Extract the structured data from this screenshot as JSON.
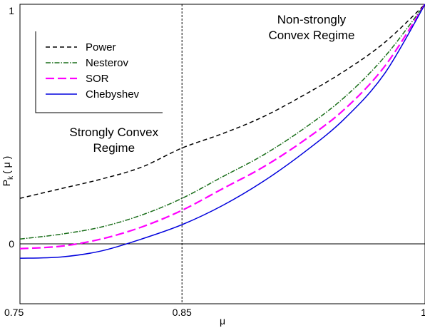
{
  "chart_data": {
    "type": "line",
    "xlabel": "μ",
    "ylabel": "P_k ( μ )",
    "ylabel_main": "P",
    "ylabel_sub": "k",
    "ylabel_arg": "( μ )",
    "xlim": [
      0.75,
      1.0
    ],
    "ylim": [
      -0.25,
      1.0
    ],
    "x_ticks": [
      {
        "value": 0.75,
        "label": "0.75"
      },
      {
        "value": 0.85,
        "label": "0.85"
      },
      {
        "value": 1.0,
        "label": "1"
      }
    ],
    "y_ticks": [
      {
        "value": 0,
        "label": "0"
      },
      {
        "value": 1,
        "label": "1"
      }
    ],
    "reference_lines": {
      "horizontal_y": 0,
      "vertical_x": 0.85
    },
    "annotations": [
      {
        "id": "strong",
        "lines": [
          "Strongly Convex",
          "Regime"
        ],
        "x": 0.808,
        "y": 0.45
      },
      {
        "id": "nonstrong",
        "lines": [
          "Non-strongly",
          "Convex Regime"
        ],
        "x": 0.93,
        "y": 0.92
      }
    ],
    "legend_position": "top-left",
    "grid": false,
    "series": [
      {
        "name": "Power",
        "color": "#000000",
        "dash": "6,4",
        "width": 1.5,
        "x": [
          0.75,
          0.775,
          0.8,
          0.825,
          0.85,
          0.875,
          0.9,
          0.925,
          0.95,
          0.975,
          1.0
        ],
        "y": [
          0.19,
          0.23,
          0.27,
          0.32,
          0.4,
          0.46,
          0.53,
          0.62,
          0.72,
          0.84,
          1.0
        ]
      },
      {
        "name": "Nesterov",
        "color": "#1a6e1a",
        "dash": "7,2,1.5,2",
        "width": 1.5,
        "x": [
          0.75,
          0.775,
          0.8,
          0.825,
          0.85,
          0.875,
          0.9,
          0.925,
          0.95,
          0.975,
          1.0
        ],
        "y": [
          0.02,
          0.04,
          0.07,
          0.12,
          0.19,
          0.28,
          0.37,
          0.48,
          0.61,
          0.78,
          1.0
        ]
      },
      {
        "name": "SOR",
        "color": "#ff00ff",
        "dash": "12,5",
        "width": 2.2,
        "x": [
          0.75,
          0.775,
          0.8,
          0.825,
          0.85,
          0.875,
          0.9,
          0.925,
          0.95,
          0.975,
          1.0
        ],
        "y": [
          -0.02,
          -0.01,
          0.02,
          0.07,
          0.14,
          0.23,
          0.32,
          0.43,
          0.56,
          0.74,
          1.0
        ]
      },
      {
        "name": "Chebyshev",
        "color": "#0000dd",
        "dash": "",
        "width": 1.5,
        "x": [
          0.75,
          0.775,
          0.8,
          0.825,
          0.85,
          0.875,
          0.9,
          0.925,
          0.95,
          0.975,
          1.0
        ],
        "y": [
          -0.06,
          -0.055,
          -0.03,
          0.02,
          0.08,
          0.16,
          0.26,
          0.38,
          0.52,
          0.71,
          1.0
        ]
      }
    ]
  }
}
